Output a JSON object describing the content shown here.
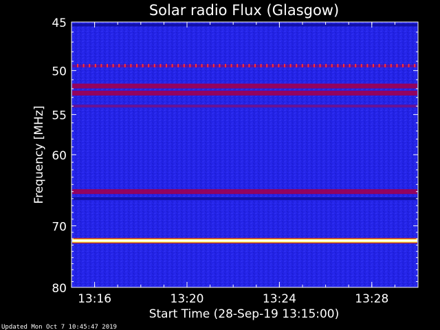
{
  "chart_data": {
    "type": "heatmap",
    "title": "Solar radio Flux (Glasgow)",
    "xlabel": "Start Time (28-Sep-19 13:15:00)",
    "ylabel": "Frequency [MHz]",
    "x_axis": {
      "unit": "time",
      "range": [
        "13:15:00",
        "13:30:00"
      ],
      "ticks": [
        {
          "label": "13:16",
          "time": "13:16"
        },
        {
          "label": "13:20",
          "time": "13:20"
        },
        {
          "label": "13:24",
          "time": "13:24"
        },
        {
          "label": "13:28",
          "time": "13:28"
        }
      ]
    },
    "y_axis": {
      "unit": "MHz",
      "range": [
        45,
        80
      ],
      "inverted": true,
      "log_scale": true,
      "ticks": [
        45,
        50,
        55,
        60,
        70,
        80
      ],
      "tick_labels": [
        "45",
        "50",
        "55",
        "60",
        "70",
        "80"
      ]
    },
    "colormap": [
      "#000080",
      "#1a1ad8",
      "#3030ff",
      "#a00060",
      "#ff2020",
      "#ffff80",
      "#ffffff"
    ],
    "emission_bands": [
      {
        "freq_mhz": 45.3,
        "intensity": 0.15
      },
      {
        "freq_mhz": 49.5,
        "intensity": 0.8,
        "pattern": "periodic-spikes"
      },
      {
        "freq_mhz": 51.7,
        "intensity": 0.55
      },
      {
        "freq_mhz": 52.5,
        "intensity": 0.5
      },
      {
        "freq_mhz": 54.0,
        "intensity": 0.45
      },
      {
        "freq_mhz": 65.0,
        "intensity": 0.65
      },
      {
        "freq_mhz": 66.0,
        "intensity": 0.3
      },
      {
        "freq_mhz": 72.3,
        "intensity": 1.0
      }
    ],
    "footer": "Updated Mon Oct  7 10:45:47 2019"
  }
}
